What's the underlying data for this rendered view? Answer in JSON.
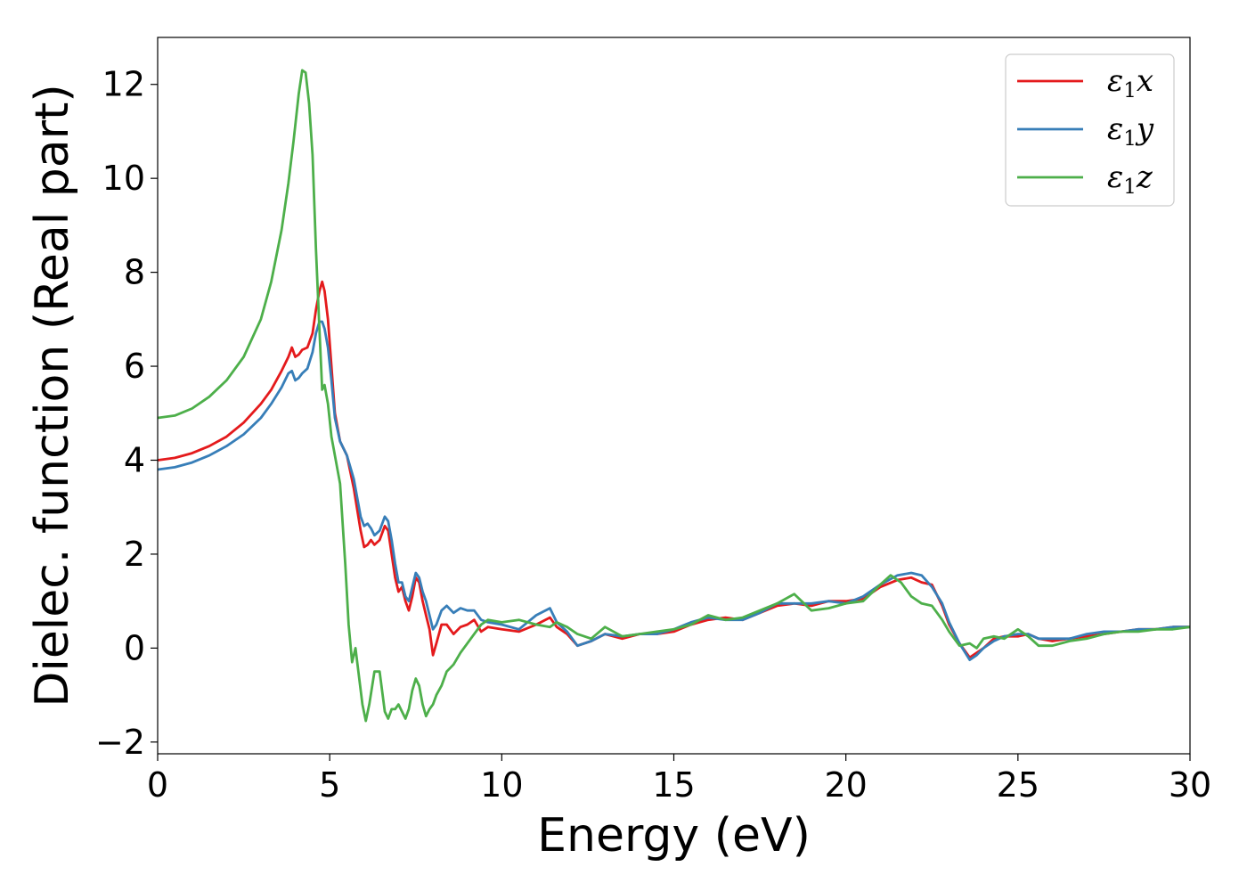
{
  "chart_data": {
    "type": "line",
    "xlabel": "Energy (eV)",
    "ylabel": "Dielec. function (Real part)",
    "xlim": [
      0,
      30
    ],
    "ylim": [
      -2.25,
      13.0
    ],
    "xticks": [
      0,
      5,
      10,
      15,
      20,
      25,
      30
    ],
    "yticks": [
      -2,
      0,
      2,
      4,
      6,
      8,
      10,
      12
    ],
    "xtick_labels": [
      "0",
      "5",
      "10",
      "15",
      "20",
      "25",
      "30"
    ],
    "ytick_labels": [
      "−2",
      "0",
      "2",
      "4",
      "6",
      "8",
      "10",
      "12"
    ],
    "grid": false,
    "legend_position": "top-right",
    "series": [
      {
        "name": "ε₁x",
        "legend": {
          "base": "ε",
          "sub": "1",
          "suffix": "x"
        },
        "color": "#e41a1c",
        "x": [
          0,
          0.5,
          1,
          1.5,
          2,
          2.5,
          3,
          3.3,
          3.6,
          3.8,
          3.9,
          4.0,
          4.1,
          4.2,
          4.35,
          4.5,
          4.6,
          4.7,
          4.78,
          4.85,
          4.95,
          5.05,
          5.15,
          5.3,
          5.5,
          5.7,
          5.9,
          6.0,
          6.1,
          6.2,
          6.3,
          6.45,
          6.6,
          6.7,
          6.8,
          6.9,
          7.0,
          7.1,
          7.2,
          7.3,
          7.4,
          7.5,
          7.6,
          7.7,
          7.8,
          7.9,
          8.0,
          8.1,
          8.25,
          8.4,
          8.6,
          8.8,
          9.0,
          9.2,
          9.4,
          9.6,
          10.0,
          10.5,
          11.0,
          11.4,
          11.6,
          11.9,
          12.2,
          12.6,
          13.0,
          13.5,
          14.0,
          14.5,
          15.0,
          15.5,
          16.0,
          16.5,
          17.0,
          17.5,
          18.0,
          18.5,
          19.0,
          19.5,
          20.0,
          20.5,
          21.0,
          21.5,
          21.9,
          22.2,
          22.5,
          22.8,
          23.0,
          23.3,
          23.6,
          23.8,
          24.0,
          24.3,
          24.6,
          25.0,
          25.3,
          25.6,
          26.0,
          26.5,
          27.0,
          27.5,
          28.0,
          28.5,
          29.0,
          29.5,
          30.0
        ],
        "y": [
          4.0,
          4.05,
          4.15,
          4.3,
          4.5,
          4.8,
          5.2,
          5.5,
          5.9,
          6.2,
          6.4,
          6.2,
          6.25,
          6.35,
          6.4,
          6.7,
          7.2,
          7.6,
          7.8,
          7.6,
          7.0,
          6.0,
          5.0,
          4.4,
          4.1,
          3.4,
          2.5,
          2.15,
          2.2,
          2.3,
          2.2,
          2.3,
          2.6,
          2.5,
          2.0,
          1.5,
          1.2,
          1.3,
          1.0,
          0.8,
          1.1,
          1.5,
          1.4,
          1.0,
          0.7,
          0.4,
          -0.15,
          0.1,
          0.5,
          0.5,
          0.3,
          0.45,
          0.5,
          0.6,
          0.35,
          0.45,
          0.4,
          0.35,
          0.5,
          0.65,
          0.45,
          0.3,
          0.05,
          0.15,
          0.3,
          0.2,
          0.3,
          0.3,
          0.35,
          0.5,
          0.6,
          0.65,
          0.6,
          0.75,
          0.9,
          0.95,
          0.9,
          1.0,
          1.0,
          1.05,
          1.3,
          1.45,
          1.5,
          1.4,
          1.35,
          0.9,
          0.5,
          0.1,
          -0.2,
          -0.1,
          0.0,
          0.2,
          0.25,
          0.25,
          0.3,
          0.2,
          0.15,
          0.2,
          0.25,
          0.3,
          0.35,
          0.4,
          0.4,
          0.45,
          0.45
        ]
      },
      {
        "name": "ε₁y",
        "legend": {
          "base": "ε",
          "sub": "1",
          "suffix": "y"
        },
        "color": "#377eb8",
        "x": [
          0,
          0.5,
          1,
          1.5,
          2,
          2.5,
          3,
          3.3,
          3.6,
          3.8,
          3.9,
          4.0,
          4.1,
          4.2,
          4.35,
          4.5,
          4.6,
          4.7,
          4.78,
          4.85,
          4.95,
          5.05,
          5.15,
          5.3,
          5.5,
          5.7,
          5.9,
          6.0,
          6.1,
          6.2,
          6.3,
          6.45,
          6.6,
          6.7,
          6.8,
          6.9,
          7.0,
          7.1,
          7.2,
          7.3,
          7.4,
          7.5,
          7.6,
          7.7,
          7.8,
          7.9,
          8.0,
          8.1,
          8.25,
          8.4,
          8.6,
          8.8,
          9.0,
          9.2,
          9.4,
          9.6,
          10.0,
          10.5,
          11.0,
          11.4,
          11.6,
          11.9,
          12.2,
          12.6,
          13.0,
          13.5,
          14.0,
          14.5,
          15.0,
          15.5,
          16.0,
          16.5,
          17.0,
          17.5,
          18.0,
          18.5,
          19.0,
          19.5,
          20.0,
          20.5,
          21.0,
          21.5,
          21.9,
          22.2,
          22.5,
          22.8,
          23.0,
          23.3,
          23.6,
          23.8,
          24.0,
          24.3,
          24.6,
          25.0,
          25.3,
          25.6,
          26.0,
          26.5,
          27.0,
          27.5,
          28.0,
          28.5,
          29.0,
          29.5,
          30.0
        ],
        "y": [
          3.8,
          3.85,
          3.95,
          4.1,
          4.3,
          4.55,
          4.9,
          5.2,
          5.55,
          5.85,
          5.9,
          5.7,
          5.75,
          5.85,
          5.95,
          6.3,
          6.7,
          6.95,
          6.95,
          6.8,
          6.4,
          5.7,
          4.9,
          4.4,
          4.1,
          3.6,
          2.8,
          2.6,
          2.65,
          2.55,
          2.4,
          2.5,
          2.8,
          2.7,
          2.3,
          1.8,
          1.4,
          1.4,
          1.1,
          1.0,
          1.3,
          1.6,
          1.5,
          1.2,
          1.0,
          0.7,
          0.4,
          0.5,
          0.8,
          0.9,
          0.75,
          0.85,
          0.8,
          0.8,
          0.6,
          0.55,
          0.5,
          0.4,
          0.7,
          0.85,
          0.55,
          0.35,
          0.05,
          0.15,
          0.3,
          0.25,
          0.3,
          0.3,
          0.4,
          0.55,
          0.65,
          0.6,
          0.6,
          0.75,
          0.95,
          0.95,
          0.95,
          1.0,
          0.95,
          1.1,
          1.35,
          1.55,
          1.6,
          1.55,
          1.3,
          0.95,
          0.55,
          0.1,
          -0.25,
          -0.15,
          0.0,
          0.15,
          0.25,
          0.3,
          0.3,
          0.2,
          0.2,
          0.2,
          0.3,
          0.35,
          0.35,
          0.4,
          0.4,
          0.45,
          0.45
        ]
      },
      {
        "name": "ε₁z",
        "legend": {
          "base": "ε",
          "sub": "1",
          "suffix": "z"
        },
        "color": "#4daf4a",
        "x": [
          0,
          0.5,
          1,
          1.5,
          2,
          2.5,
          3,
          3.3,
          3.6,
          3.8,
          3.95,
          4.1,
          4.2,
          4.3,
          4.4,
          4.5,
          4.6,
          4.7,
          4.78,
          4.85,
          4.95,
          5.05,
          5.15,
          5.3,
          5.45,
          5.55,
          5.65,
          5.75,
          5.85,
          5.95,
          6.05,
          6.15,
          6.3,
          6.45,
          6.6,
          6.7,
          6.8,
          6.9,
          7.0,
          7.1,
          7.2,
          7.3,
          7.4,
          7.5,
          7.6,
          7.7,
          7.8,
          7.9,
          8.0,
          8.1,
          8.25,
          8.4,
          8.6,
          8.8,
          9.0,
          9.2,
          9.4,
          9.6,
          10.0,
          10.5,
          11.0,
          11.4,
          11.6,
          11.9,
          12.2,
          12.6,
          13.0,
          13.5,
          14.0,
          14.5,
          15.0,
          15.5,
          16.0,
          16.5,
          17.0,
          17.5,
          18.0,
          18.5,
          19.0,
          19.5,
          20.0,
          20.5,
          21.0,
          21.3,
          21.6,
          21.9,
          22.2,
          22.5,
          22.8,
          23.0,
          23.3,
          23.6,
          23.8,
          24.0,
          24.3,
          24.6,
          25.0,
          25.3,
          25.6,
          26.0,
          26.5,
          27.0,
          27.5,
          28.0,
          28.5,
          29.0,
          29.5,
          30.0
        ],
        "y": [
          4.9,
          4.95,
          5.1,
          5.35,
          5.7,
          6.2,
          7.0,
          7.8,
          8.9,
          9.9,
          10.8,
          11.8,
          12.3,
          12.25,
          11.6,
          10.5,
          8.5,
          6.8,
          5.5,
          5.6,
          5.2,
          4.5,
          4.1,
          3.5,
          1.8,
          0.5,
          -0.3,
          0.0,
          -0.6,
          -1.2,
          -1.55,
          -1.2,
          -0.5,
          -0.5,
          -1.35,
          -1.5,
          -1.3,
          -1.3,
          -1.2,
          -1.35,
          -1.5,
          -1.3,
          -0.9,
          -0.65,
          -0.8,
          -1.2,
          -1.45,
          -1.3,
          -1.2,
          -1.0,
          -0.8,
          -0.5,
          -0.35,
          -0.1,
          0.1,
          0.3,
          0.5,
          0.6,
          0.55,
          0.6,
          0.5,
          0.45,
          0.55,
          0.45,
          0.3,
          0.2,
          0.45,
          0.25,
          0.3,
          0.35,
          0.4,
          0.5,
          0.7,
          0.6,
          0.65,
          0.8,
          0.95,
          1.15,
          0.8,
          0.85,
          0.95,
          1.0,
          1.35,
          1.55,
          1.4,
          1.1,
          0.95,
          0.9,
          0.6,
          0.35,
          0.05,
          0.1,
          0.0,
          0.2,
          0.25,
          0.2,
          0.4,
          0.25,
          0.05,
          0.05,
          0.15,
          0.2,
          0.3,
          0.35,
          0.35,
          0.4,
          0.4,
          0.45
        ]
      }
    ]
  }
}
